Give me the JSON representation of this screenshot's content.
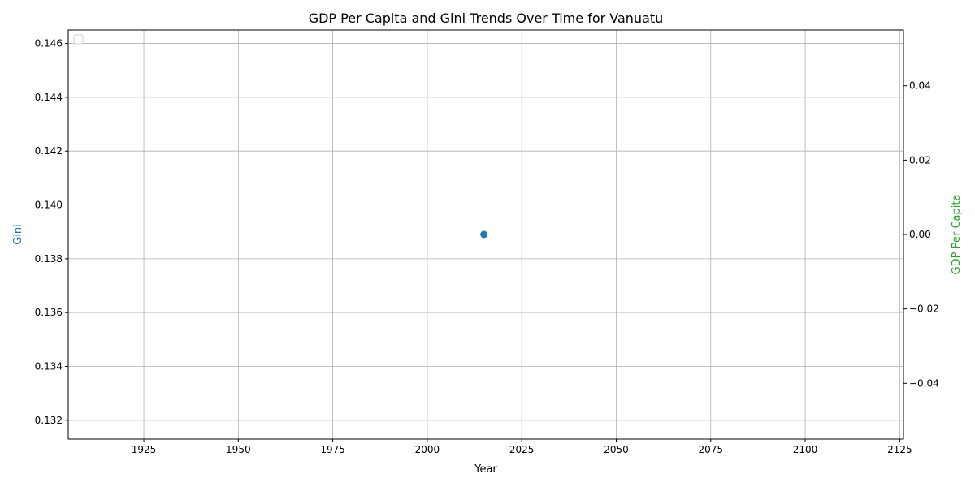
{
  "chart_data": {
    "type": "scatter",
    "title": "GDP Per Capita and Gini Trends Over Time for Vanuatu",
    "xlabel": "Year",
    "ylabel_left": "Gini",
    "ylabel_right": "GDP Per Capita",
    "xlim": [
      1905,
      2126
    ],
    "ylim_left": [
      0.1313,
      0.1465
    ],
    "ylim_right": [
      -0.055,
      0.055
    ],
    "x_ticks": [
      1925,
      1950,
      1975,
      2000,
      2025,
      2050,
      2075,
      2100,
      2125
    ],
    "x_tick_labels": [
      "1925",
      "1950",
      "1975",
      "2000",
      "2025",
      "2050",
      "2075",
      "2100",
      "2125"
    ],
    "y_left_ticks": [
      0.132,
      0.134,
      0.136,
      0.138,
      0.14,
      0.142,
      0.144,
      0.146
    ],
    "y_left_tick_labels": [
      "0.132",
      "0.134",
      "0.136",
      "0.138",
      "0.140",
      "0.142",
      "0.144",
      "0.146"
    ],
    "y_right_ticks": [
      -0.04,
      -0.02,
      0.0,
      0.02,
      0.04
    ],
    "y_right_tick_labels": [
      "−0.04",
      "−0.02",
      "0.00",
      "0.02",
      "0.04"
    ],
    "grid": true,
    "legend_position": "top-left",
    "series": [
      {
        "axis": "left",
        "color": "#1f77b4",
        "points": [
          {
            "x": 2015,
            "y": 0.1389
          }
        ]
      }
    ],
    "colors": {
      "gini_label": "#1f77b4",
      "gdp_label": "#2ca02c",
      "grid": "#b0b0b0",
      "axis": "#000000"
    }
  }
}
